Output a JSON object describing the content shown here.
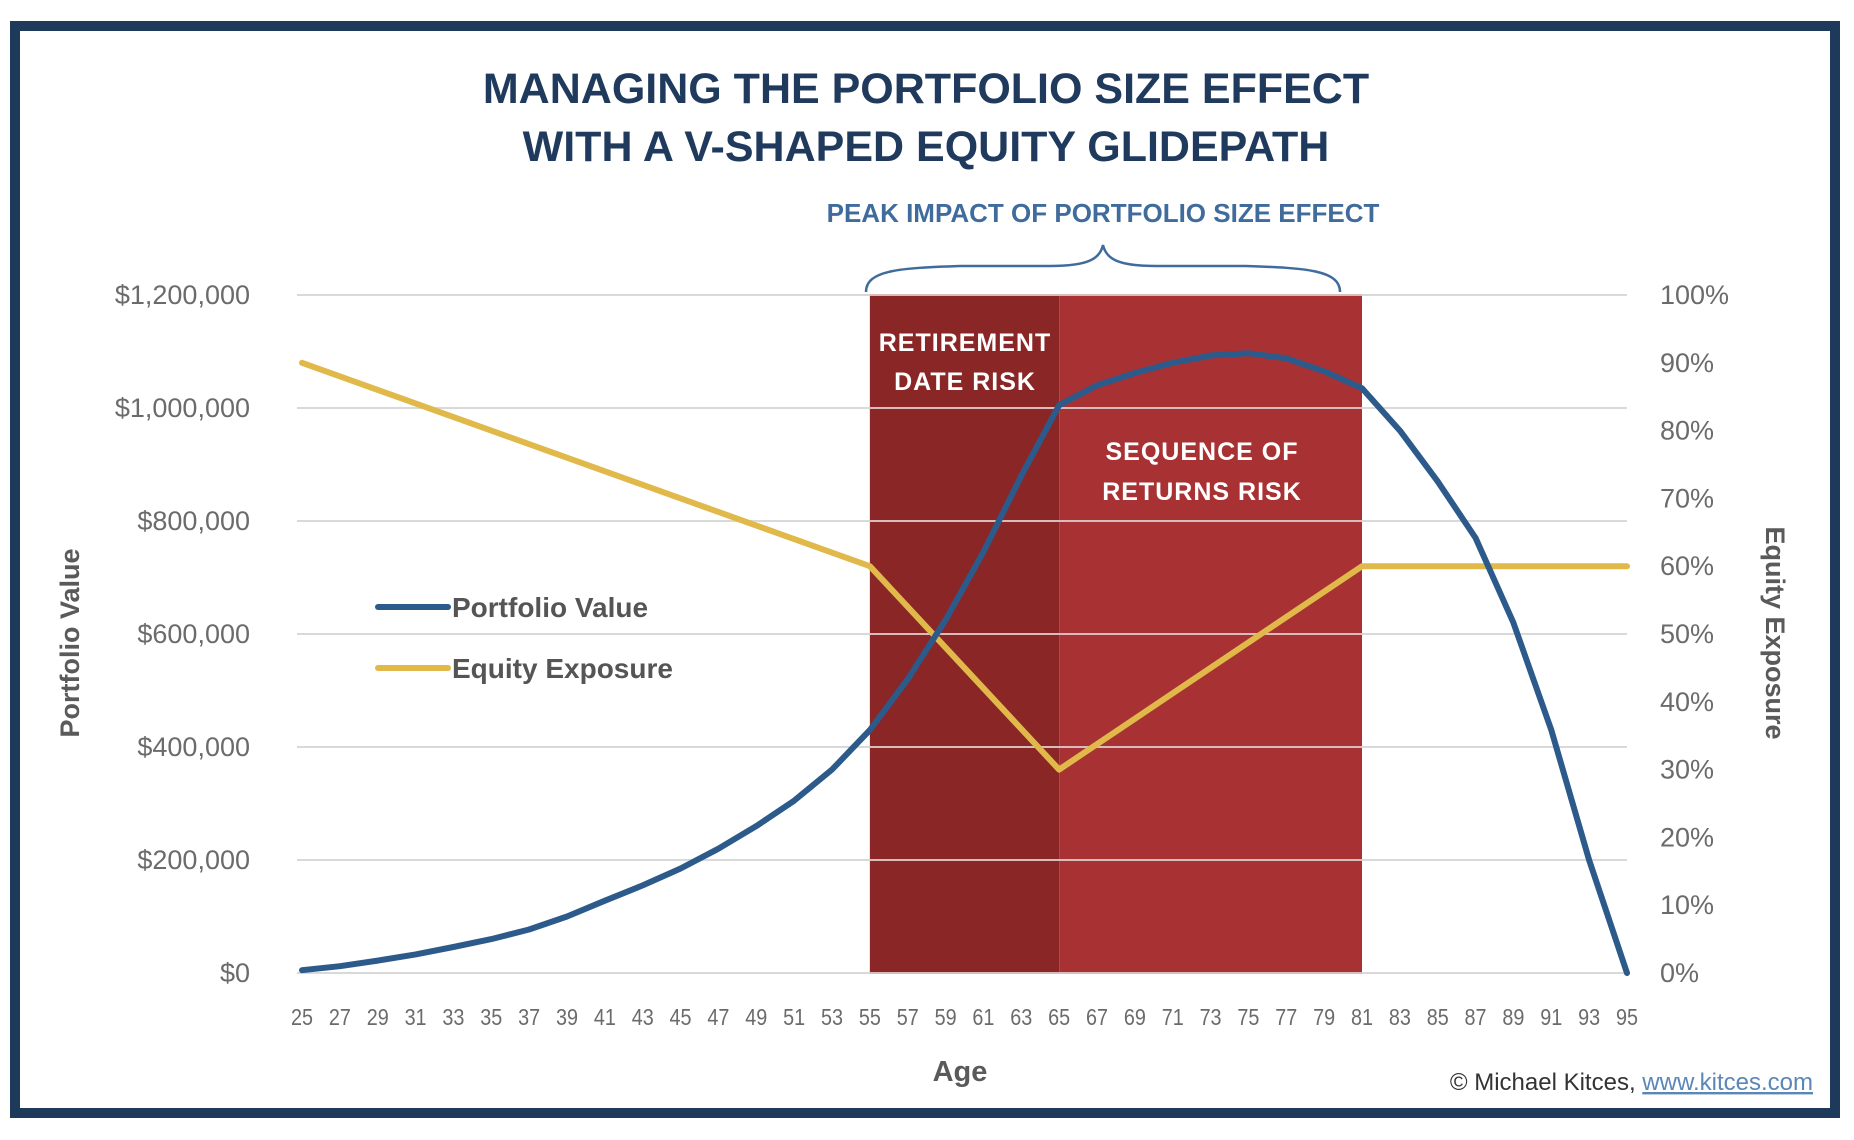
{
  "chart_data": {
    "type": "line",
    "title": [
      "MANAGING THE PORTFOLIO SIZE EFFECT",
      "WITH A V-SHAPED EQUITY GLIDEPATH"
    ],
    "annotation_top": "PEAK IMPACT OF PORTFOLIO SIZE EFFECT",
    "xlabel": "Age",
    "ylabel_left": "Portfolio Value",
    "ylabel_right": "Equity Exposure",
    "xlim": [
      25,
      95
    ],
    "ylim_left": [
      0,
      1200000
    ],
    "ylim_right": [
      0,
      100
    ],
    "grid": true,
    "legend_position": "center-left",
    "x_ticks": [
      "25",
      "27",
      "29",
      "31",
      "33",
      "35",
      "37",
      "39",
      "41",
      "43",
      "45",
      "47",
      "49",
      "51",
      "53",
      "55",
      "57",
      "59",
      "61",
      "63",
      "65",
      "67",
      "69",
      "71",
      "73",
      "75",
      "77",
      "79",
      "81",
      "83",
      "85",
      "87",
      "89",
      "91",
      "93",
      "95"
    ],
    "y_ticks_left": [
      "$0",
      "$200,000",
      "$400,000",
      "$600,000",
      "$800,000",
      "$1,000,000",
      "$1,200,000"
    ],
    "y_ticks_right": [
      "0%",
      "10%",
      "20%",
      "30%",
      "40%",
      "50%",
      "60%",
      "70%",
      "80%",
      "90%",
      "100%"
    ],
    "bands": [
      {
        "label": [
          "RETIREMENT",
          "DATE RISK"
        ],
        "from": 55,
        "to": 65,
        "color": "#8b2626"
      },
      {
        "label": [
          "SEQUENCE OF",
          "RETURNS RISK"
        ],
        "from": 65,
        "to": 81,
        "color": "#a83233"
      }
    ],
    "series": [
      {
        "name": "Portfolio Value",
        "axis": "left",
        "color": "#2c5a8a",
        "x": [
          25,
          27,
          29,
          31,
          33,
          35,
          37,
          39,
          41,
          43,
          45,
          47,
          49,
          51,
          53,
          55,
          57,
          59,
          61,
          63,
          65,
          67,
          69,
          71,
          73,
          75,
          77,
          79,
          81,
          83,
          85,
          87,
          89,
          91,
          93,
          95
        ],
        "values": [
          5000,
          12000,
          22000,
          33000,
          46000,
          60000,
          77000,
          100000,
          128000,
          155000,
          185000,
          220000,
          260000,
          305000,
          360000,
          430000,
          520000,
          625000,
          745000,
          880000,
          1005000,
          1040000,
          1062000,
          1080000,
          1093000,
          1097000,
          1088000,
          1065000,
          1035000,
          960000,
          870000,
          770000,
          620000,
          430000,
          200000,
          0
        ]
      },
      {
        "name": "Equity Exposure",
        "axis": "right",
        "color": "#e1b94a",
        "x": [
          25,
          55,
          65,
          81,
          95
        ],
        "values": [
          90,
          60,
          30,
          60,
          60
        ]
      }
    ]
  },
  "credit": {
    "text": "© Michael Kitces, ",
    "link": "www.kitces.com"
  }
}
